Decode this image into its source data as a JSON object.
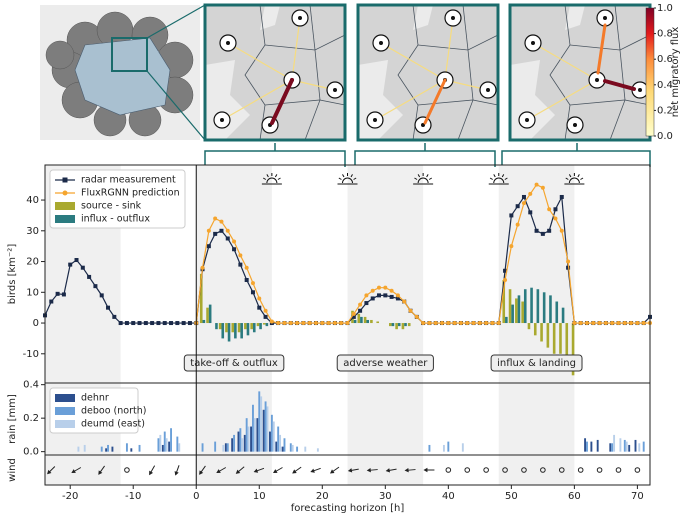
{
  "chart_data": [
    {
      "type": "combo",
      "ylabel": "birds [km⁻²]",
      "xlim": [
        -24,
        72
      ],
      "ylim": [
        -19.5,
        51.4
      ],
      "yticks": [
        -10,
        0,
        10,
        20,
        30,
        40
      ],
      "night_spans": [
        [
          -24,
          -12
        ],
        [
          0,
          12
        ],
        [
          24,
          36
        ],
        [
          48,
          60
        ]
      ],
      "annotations": [
        "take-off & outflux",
        "adverse weather",
        "influx & landing"
      ],
      "x": [
        -24,
        -23,
        -22,
        -21,
        -20,
        -19,
        -18,
        -17,
        -16,
        -15,
        -14,
        -13,
        -12,
        -11,
        -10,
        -9,
        -8,
        -7,
        -6,
        -5,
        -4,
        -3,
        -2,
        -1,
        0,
        1,
        2,
        3,
        4,
        5,
        6,
        7,
        8,
        9,
        10,
        11,
        12,
        13,
        14,
        15,
        16,
        17,
        18,
        19,
        20,
        21,
        22,
        23,
        24,
        25,
        26,
        27,
        28,
        29,
        30,
        31,
        32,
        33,
        34,
        35,
        36,
        37,
        38,
        39,
        40,
        41,
        42,
        43,
        44,
        45,
        46,
        47,
        48,
        49,
        50,
        51,
        52,
        53,
        54,
        55,
        56,
        57,
        58,
        59,
        60,
        61,
        62,
        63,
        64,
        65,
        66,
        67,
        68,
        69,
        70,
        71,
        72
      ],
      "series": [
        {
          "name": "radar measurement",
          "type": "line",
          "marker": "square",
          "color": "#1b2a49",
          "values": [
            2.5,
            7,
            9.5,
            9.3,
            19,
            20.5,
            18,
            15,
            12,
            9,
            5,
            2,
            0,
            0,
            0,
            0,
            0,
            0,
            0,
            0,
            0,
            0,
            0,
            0,
            0,
            17.5,
            25,
            29,
            30,
            27.5,
            24,
            19,
            14,
            10,
            5,
            2,
            0,
            0,
            0,
            0,
            0,
            0,
            0,
            0,
            0,
            0,
            0,
            0,
            0,
            2,
            4,
            6.5,
            8,
            9,
            9,
            8.5,
            8,
            7,
            4,
            2,
            0,
            0,
            0,
            0,
            0,
            0,
            0,
            0,
            0,
            0,
            0,
            0,
            0,
            17,
            35,
            38,
            41,
            36,
            30,
            29,
            30,
            37,
            41,
            18,
            0,
            0,
            0,
            0,
            0,
            0,
            0,
            0,
            0,
            0,
            0,
            0,
            2
          ]
        },
        {
          "name": "FluxRGNN prediction",
          "type": "line",
          "marker": "circle",
          "color": "#f5a52e",
          "values": [
            null,
            null,
            null,
            null,
            null,
            null,
            null,
            null,
            null,
            null,
            null,
            null,
            null,
            null,
            null,
            null,
            null,
            null,
            null,
            null,
            null,
            null,
            null,
            null,
            0,
            18,
            30,
            34,
            33,
            30,
            26.5,
            22,
            18,
            13,
            8,
            4,
            0.5,
            0,
            0,
            0,
            0,
            0,
            0,
            0,
            0,
            0,
            0,
            0,
            0,
            3,
            6,
            9,
            10.5,
            11.5,
            11.5,
            10.5,
            9,
            7,
            4,
            2,
            0,
            0,
            0,
            0,
            0,
            0,
            0,
            0,
            0,
            0,
            0,
            0,
            0,
            14,
            25,
            32,
            39,
            42,
            45,
            44,
            37,
            34,
            30,
            20,
            0,
            0,
            0,
            0,
            0,
            0,
            0,
            0,
            0,
            0,
            0,
            0,
            0
          ]
        },
        {
          "name": "source - sink",
          "type": "bar",
          "color": "#a9a92f",
          "x": [
            1,
            2,
            3,
            4,
            5,
            6,
            7,
            8,
            9,
            10,
            11,
            25,
            26,
            27,
            28,
            29,
            30,
            31,
            32,
            33,
            34,
            49,
            50,
            51,
            52,
            53,
            54,
            55,
            56,
            57,
            58,
            59,
            60
          ],
          "values": [
            16,
            5,
            0,
            -2,
            -3,
            -3,
            -3,
            -2,
            -2,
            -1,
            -0.5,
            4,
            3,
            2,
            1,
            0.5,
            0,
            -1,
            -2,
            -2,
            -1,
            14,
            11,
            8,
            7,
            -2,
            -4,
            -6,
            -8,
            -10,
            -10,
            -12,
            -17
          ]
        },
        {
          "name": "influx - outflux",
          "type": "bar",
          "color": "#2b7b80",
          "x": [
            1,
            2,
            3,
            4,
            5,
            6,
            7,
            8,
            9,
            10,
            11,
            25,
            26,
            27,
            28,
            29,
            30,
            31,
            32,
            33,
            49,
            50,
            51,
            52,
            53,
            54,
            55,
            56,
            57,
            58,
            59
          ],
          "values": [
            1,
            6,
            -2,
            -5,
            -6,
            -5,
            -5,
            -4,
            -3,
            -2,
            -1,
            1,
            2,
            1,
            0,
            0,
            0,
            -1,
            -1,
            -1,
            2,
            6,
            9,
            11,
            11.5,
            11,
            10,
            9,
            7,
            5,
            0
          ]
        }
      ]
    },
    {
      "type": "bar",
      "ylabel": "rain [mm]",
      "xlim": [
        -24,
        72
      ],
      "ylim": [
        -0.02,
        0.41
      ],
      "yticks": [
        {
          "value": 0,
          "label": "0.0"
        },
        {
          "value": 0.2,
          "label": "0.2"
        },
        {
          "value": 0.4,
          "label": "0.4"
        }
      ],
      "series": [
        {
          "name": "dehnr",
          "color": "#2c4f8e",
          "x": [
            -14,
            -13,
            -10,
            -5,
            -4,
            5,
            6,
            7,
            8,
            9,
            10,
            11,
            12,
            13,
            14,
            62,
            63,
            64,
            66,
            69,
            70
          ],
          "values": [
            0.02,
            0.03,
            0.02,
            0.04,
            0.06,
            0.05,
            0.08,
            0.12,
            0.1,
            0.15,
            0.2,
            0.25,
            0.12,
            0.06,
            0.03,
            0.08,
            0.06,
            0.07,
            0.05,
            0.04,
            0.07
          ]
        },
        {
          "name": "deboo (north)",
          "color": "#6a9fd8",
          "x": [
            -15,
            -14,
            -11,
            -9,
            -6,
            -5,
            -4,
            -3,
            1,
            3,
            5,
            6,
            7,
            8,
            9,
            10,
            11,
            12,
            13,
            14,
            15,
            16,
            37,
            40,
            62,
            66,
            68,
            71
          ],
          "values": [
            0.03,
            0.04,
            0.05,
            0.04,
            0.08,
            0.12,
            0.14,
            0.09,
            0.05,
            0.06,
            0.05,
            0.1,
            0.14,
            0.2,
            0.28,
            0.36,
            0.3,
            0.22,
            0.15,
            0.08,
            0.05,
            0.03,
            0.04,
            0.06,
            0.06,
            0.05,
            0.07,
            0.06
          ]
        },
        {
          "name": "deumd (east)",
          "color": "#b8cfea",
          "x": [
            -19,
            -18,
            -6,
            -5,
            -3,
            4,
            7,
            8,
            9,
            10,
            11,
            12,
            13,
            15,
            17,
            19,
            39,
            42,
            66,
            67,
            68,
            70
          ],
          "values": [
            0.03,
            0.04,
            0.1,
            0.08,
            0.05,
            0.04,
            0.08,
            0.15,
            0.2,
            0.33,
            0.27,
            0.18,
            0.1,
            0.04,
            0.03,
            0.02,
            0.04,
            0.05,
            0.1,
            0.08,
            0.06,
            0.05
          ]
        }
      ]
    },
    {
      "type": "wind",
      "ylabel": "wind",
      "xlabel": "forecasting horizon [h]",
      "xlim": [
        -24,
        72
      ],
      "xticks": [
        -20,
        -10,
        0,
        10,
        20,
        30,
        40,
        50,
        60,
        70
      ],
      "x": [
        -23,
        -19,
        -15,
        -11,
        -7,
        -3,
        1,
        4,
        7,
        10,
        13,
        16,
        19,
        22,
        25,
        28,
        31,
        34,
        37,
        40,
        43,
        46,
        49,
        52,
        55,
        58,
        61,
        64,
        67,
        70
      ],
      "direction": [
        225,
        240,
        215,
        null,
        210,
        200,
        215,
        240,
        230,
        250,
        240,
        235,
        250,
        235,
        260,
        265,
        260,
        265,
        270,
        null,
        null,
        null,
        null,
        null,
        null,
        null,
        null,
        null,
        null,
        null
      ]
    },
    {
      "type": "colorbar",
      "label": "net migratory flux",
      "ylim": [
        0,
        1
      ],
      "yticks": [
        {
          "value": 0,
          "label": "0.0"
        },
        {
          "value": 0.2,
          "label": "0.2"
        },
        {
          "value": 0.4,
          "label": "0.4"
        },
        {
          "value": 0.6,
          "label": "0.6"
        },
        {
          "value": 0.8,
          "label": "0.8"
        },
        {
          "value": 1,
          "label": "1.0"
        }
      ]
    }
  ]
}
